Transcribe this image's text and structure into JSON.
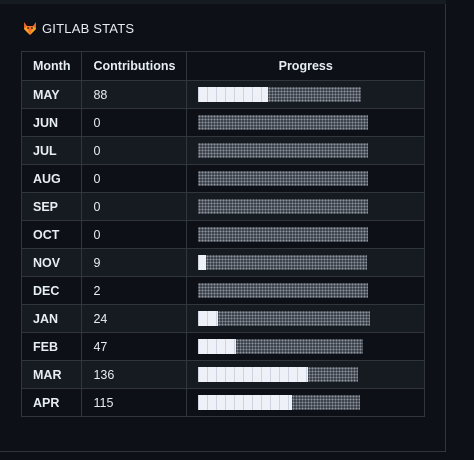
{
  "header": {
    "icon": "gitlab-fox-icon",
    "title": "GITLAB STATS"
  },
  "table": {
    "columns": [
      "Month",
      "Contributions",
      "Progress"
    ],
    "rows": [
      {
        "month": "MAY",
        "contributions": "88",
        "progress": 0.35
      },
      {
        "month": "JUN",
        "contributions": "0",
        "progress": 0.0
      },
      {
        "month": "JUL",
        "contributions": "0",
        "progress": 0.0
      },
      {
        "month": "AUG",
        "contributions": "0",
        "progress": 0.0
      },
      {
        "month": "SEP",
        "contributions": "0",
        "progress": 0.0
      },
      {
        "month": "OCT",
        "contributions": "0",
        "progress": 0.0
      },
      {
        "month": "NOV",
        "contributions": "9",
        "progress": 0.04
      },
      {
        "month": "DEC",
        "contributions": "2",
        "progress": 0.0
      },
      {
        "month": "JAN",
        "contributions": "24",
        "progress": 0.1
      },
      {
        "month": "FEB",
        "contributions": "47",
        "progress": 0.19
      },
      {
        "month": "MAR",
        "contributions": "136",
        "progress": 0.55
      },
      {
        "month": "APR",
        "contributions": "115",
        "progress": 0.47
      }
    ]
  },
  "colors": {
    "background": "#0d1117",
    "row_alt": "#161b22",
    "border": "#30363d",
    "text": "#e6edf3",
    "bar_fill": "#eef1f7",
    "bar_empty": "#3a3f47"
  }
}
